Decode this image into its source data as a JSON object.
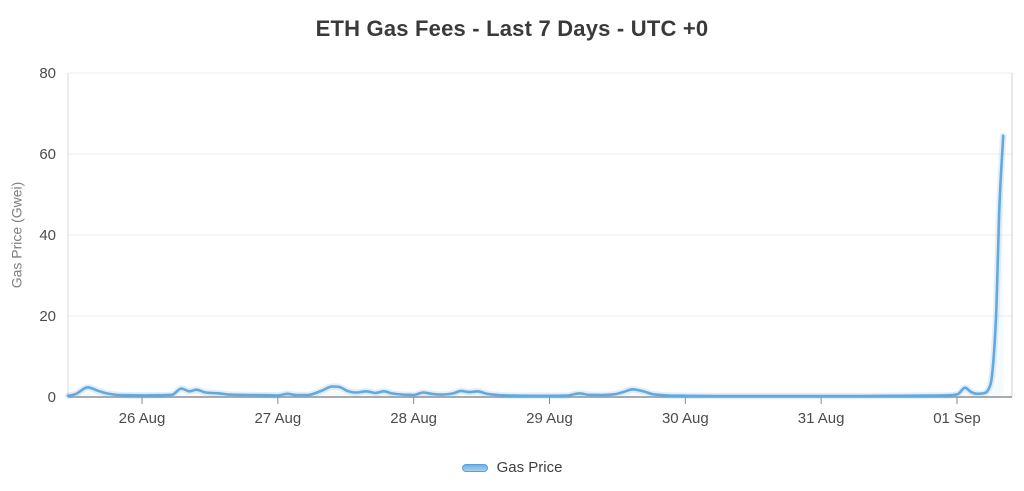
{
  "chart_data": {
    "type": "line",
    "title": "ETH Gas Fees - Last 7 Days - UTC +0",
    "xlabel": "",
    "ylabel": "Gas Price (Gwei)",
    "x_tick_labels": [
      "26 Aug",
      "27 Aug",
      "28 Aug",
      "29 Aug",
      "30 Aug",
      "31 Aug",
      "01 Sep"
    ],
    "x_tick_positions_days": [
      0,
      1,
      2,
      3,
      4,
      5,
      6
    ],
    "x_values_unit": "days from 26 Aug 00:00 UTC",
    "xlim_days": [
      -0.545,
      6.405
    ],
    "y_ticks": [
      0,
      20,
      40,
      60,
      80
    ],
    "ylim": [
      0,
      80
    ],
    "grid": "horizontal",
    "legend_position": "bottom",
    "series": [
      {
        "name": "Gas Price",
        "color": "#64a9dd",
        "points": [
          [
            -0.545,
            0.3
          ],
          [
            -0.49,
            0.7
          ],
          [
            -0.4,
            2.4
          ],
          [
            -0.33,
            1.6
          ],
          [
            -0.26,
            0.9
          ],
          [
            -0.19,
            0.55
          ],
          [
            -0.09,
            0.45
          ],
          [
            0,
            0.4
          ],
          [
            0.12,
            0.45
          ],
          [
            0.22,
            0.55
          ],
          [
            0.29,
            2.1
          ],
          [
            0.35,
            1.4
          ],
          [
            0.4,
            1.8
          ],
          [
            0.47,
            1.1
          ],
          [
            0.55,
            0.95
          ],
          [
            0.65,
            0.6
          ],
          [
            0.78,
            0.5
          ],
          [
            0.92,
            0.45
          ],
          [
            1.0,
            0.4
          ],
          [
            1.07,
            0.8
          ],
          [
            1.13,
            0.5
          ],
          [
            1.22,
            0.5
          ],
          [
            1.32,
            1.5
          ],
          [
            1.4,
            2.6
          ],
          [
            1.45,
            2.5
          ],
          [
            1.52,
            1.4
          ],
          [
            1.58,
            1.1
          ],
          [
            1.65,
            1.4
          ],
          [
            1.72,
            1.0
          ],
          [
            1.78,
            1.4
          ],
          [
            1.84,
            0.9
          ],
          [
            1.92,
            0.6
          ],
          [
            2.0,
            0.5
          ],
          [
            2.07,
            1.1
          ],
          [
            2.13,
            0.8
          ],
          [
            2.21,
            0.6
          ],
          [
            2.29,
            0.9
          ],
          [
            2.35,
            1.5
          ],
          [
            2.41,
            1.2
          ],
          [
            2.47,
            1.4
          ],
          [
            2.54,
            0.8
          ],
          [
            2.62,
            0.5
          ],
          [
            2.73,
            0.35
          ],
          [
            2.87,
            0.3
          ],
          [
            3.0,
            0.3
          ],
          [
            3.13,
            0.35
          ],
          [
            3.22,
            0.9
          ],
          [
            3.29,
            0.55
          ],
          [
            3.39,
            0.5
          ],
          [
            3.48,
            0.7
          ],
          [
            3.55,
            1.3
          ],
          [
            3.61,
            1.9
          ],
          [
            3.69,
            1.4
          ],
          [
            3.76,
            0.7
          ],
          [
            3.86,
            0.4
          ],
          [
            4.0,
            0.3
          ],
          [
            4.23,
            0.25
          ],
          [
            4.52,
            0.25
          ],
          [
            4.81,
            0.25
          ],
          [
            5.0,
            0.25
          ],
          [
            5.29,
            0.25
          ],
          [
            5.58,
            0.3
          ],
          [
            5.8,
            0.35
          ],
          [
            5.95,
            0.45
          ],
          [
            6.01,
            0.8
          ],
          [
            6.06,
            2.3
          ],
          [
            6.1,
            1.3
          ],
          [
            6.15,
            0.8
          ],
          [
            6.19,
            0.9
          ],
          [
            6.23,
            1.8
          ],
          [
            6.26,
            6
          ],
          [
            6.29,
            22
          ],
          [
            6.31,
            45
          ],
          [
            6.34,
            64.5
          ]
        ]
      }
    ]
  },
  "colors": {
    "line": "#64a9dd",
    "line_glow": "rgba(125,182,226,0.22)",
    "area_fill": "rgba(100,169,221,0.06)",
    "grid": "#ececec",
    "axis_y_line": "#d9d9d9",
    "axis_right_line": "#d0d0d0",
    "axis_x_line": "#8f8f8f",
    "tick_mark": "#8a8a8a",
    "tick_text": "#4c4c4c",
    "title_text": "#3a3a3a",
    "axis_title_text": "#7f7f7f",
    "background": "#ffffff"
  }
}
